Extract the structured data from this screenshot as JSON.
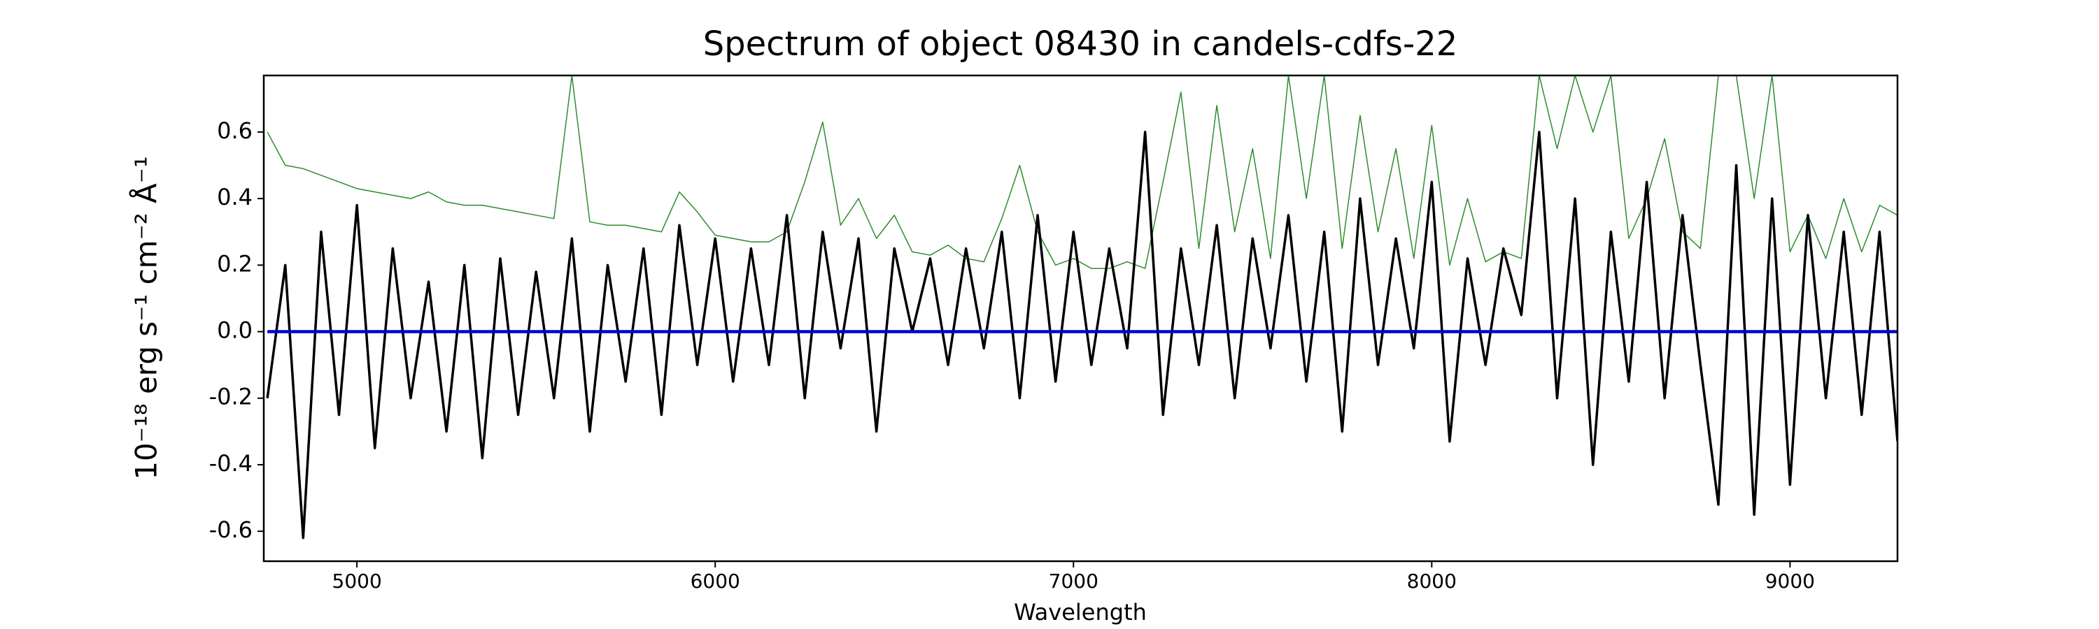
{
  "chart_data": {
    "type": "line",
    "title": "Spectrum of object 08430 in candels-cdfs-22",
    "xlabel": "Wavelength",
    "ylabel": "10⁻¹⁸ erg s⁻¹ cm⁻² Å⁻¹",
    "x": [
      4750,
      4800,
      4850,
      4900,
      4950,
      5000,
      5050,
      5100,
      5150,
      5200,
      5250,
      5300,
      5350,
      5400,
      5450,
      5500,
      5550,
      5600,
      5650,
      5700,
      5750,
      5800,
      5850,
      5900,
      5950,
      6000,
      6050,
      6100,
      6150,
      6200,
      6250,
      6300,
      6350,
      6400,
      6450,
      6500,
      6550,
      6600,
      6650,
      6700,
      6750,
      6800,
      6850,
      6900,
      6950,
      7000,
      7050,
      7100,
      7150,
      7200,
      7250,
      7300,
      7350,
      7400,
      7450,
      7500,
      7550,
      7600,
      7650,
      7700,
      7750,
      7800,
      7850,
      7900,
      7950,
      8000,
      8050,
      8100,
      8150,
      8200,
      8250,
      8300,
      8350,
      8400,
      8450,
      8500,
      8550,
      8600,
      8650,
      8700,
      8750,
      8800,
      8850,
      8900,
      8950,
      9000,
      9050,
      9100,
      9150,
      9200,
      9250,
      9300
    ],
    "series": [
      {
        "color": "#2e8b2e",
        "values": [
          0.6,
          0.5,
          0.49,
          0.47,
          0.45,
          0.43,
          0.42,
          0.41,
          0.4,
          0.42,
          0.39,
          0.38,
          0.38,
          0.37,
          0.36,
          0.35,
          0.34,
          0.77,
          0.33,
          0.32,
          0.32,
          0.31,
          0.3,
          0.42,
          0.36,
          0.29,
          0.28,
          0.27,
          0.27,
          0.3,
          0.45,
          0.63,
          0.32,
          0.4,
          0.28,
          0.35,
          0.24,
          0.23,
          0.26,
          0.22,
          0.21,
          0.34,
          0.5,
          0.3,
          0.2,
          0.22,
          0.19,
          0.19,
          0.21,
          0.19,
          0.45,
          0.72,
          0.25,
          0.68,
          0.3,
          0.55,
          0.22,
          0.77,
          0.4,
          0.77,
          0.25,
          0.65,
          0.3,
          0.55,
          0.22,
          0.62,
          0.2,
          0.4,
          0.21,
          0.24,
          0.22,
          0.77,
          0.55,
          0.77,
          0.6,
          0.77,
          0.28,
          0.4,
          0.58,
          0.3,
          0.25,
          0.77,
          0.77,
          0.4,
          0.77,
          0.24,
          0.35,
          0.22,
          0.4,
          0.24,
          0.38,
          0.35
        ]
      },
      {
        "color": "#000000",
        "values": [
          -0.2,
          0.2,
          -0.62,
          0.3,
          -0.25,
          0.38,
          -0.35,
          0.25,
          -0.2,
          0.15,
          -0.3,
          0.2,
          -0.38,
          0.22,
          -0.25,
          0.18,
          -0.2,
          0.28,
          -0.3,
          0.2,
          -0.15,
          0.25,
          -0.25,
          0.32,
          -0.1,
          0.28,
          -0.15,
          0.25,
          -0.1,
          0.35,
          -0.2,
          0.3,
          -0.05,
          0.28,
          -0.3,
          0.25,
          0.0,
          0.22,
          -0.1,
          0.25,
          -0.05,
          0.3,
          -0.2,
          0.35,
          -0.15,
          0.3,
          -0.1,
          0.25,
          -0.05,
          0.6,
          -0.25,
          0.25,
          -0.1,
          0.32,
          -0.2,
          0.28,
          -0.05,
          0.35,
          -0.15,
          0.3,
          -0.3,
          0.4,
          -0.1,
          0.28,
          -0.05,
          0.45,
          -0.33,
          0.22,
          -0.1,
          0.25,
          0.05,
          0.6,
          -0.2,
          0.4,
          -0.4,
          0.3,
          -0.15,
          0.45,
          -0.2,
          0.35,
          -0.1,
          -0.52,
          0.5,
          -0.55,
          0.4,
          -0.46,
          0.35,
          -0.2,
          0.3,
          -0.25,
          0.3,
          -0.33
        ]
      },
      {
        "color": "#0000cc",
        "values": [
          0,
          0,
          0,
          0,
          0,
          0,
          0,
          0,
          0,
          0,
          0,
          0,
          0,
          0,
          0,
          0,
          0,
          0,
          0,
          0,
          0,
          0,
          0,
          0,
          0,
          0,
          0,
          0,
          0,
          0,
          0,
          0,
          0,
          0,
          0,
          0,
          0,
          0,
          0,
          0,
          0,
          0,
          0,
          0,
          0,
          0,
          0,
          0,
          0,
          0,
          0,
          0,
          0,
          0,
          0,
          0,
          0,
          0,
          0,
          0,
          0,
          0,
          0,
          0,
          0,
          0,
          0,
          0,
          0,
          0,
          0,
          0,
          0,
          0,
          0,
          0,
          0,
          0,
          0,
          0,
          0,
          0,
          0,
          0,
          0,
          0,
          0,
          0,
          0,
          0,
          0,
          0
        ]
      }
    ],
    "xlim": [
      4740,
      9300
    ],
    "ylim": [
      -0.69,
      0.77
    ],
    "xticks": [
      5000,
      6000,
      7000,
      8000,
      9000
    ],
    "yticks": [
      -0.6,
      -0.4,
      -0.2,
      {
        "value": 0,
        "label": "0.0"
      },
      0.2,
      0.4,
      0.6
    ]
  }
}
